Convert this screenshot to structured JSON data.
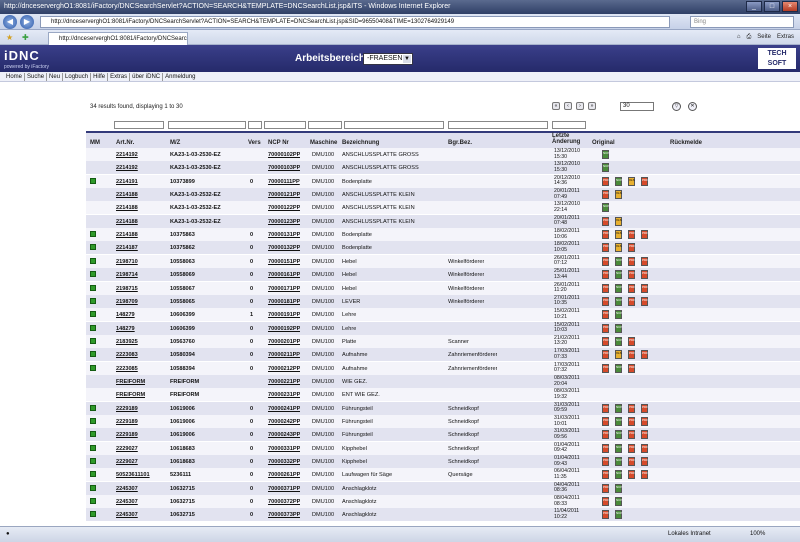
{
  "browser": {
    "title": "http://dnceserverghO1:8081/iFactory/DNCSearchServlet?ACTION=SEARCH&TEMPLATE=DNCSearchList.jsp&ITS - Windows Internet Explorer",
    "address": "http://dnceserverghO1:8081/iFactory/DNCSearchServlet?ACTION=SEARCH&TEMPLATE=DNCSearchList.jsp&SID=96550408&TIME=1302764929149",
    "search_placeholder": "Bing",
    "tab_label": "http://dnceserverghO1:8081/iFactory/DNCSearchServl...",
    "toolbar_safety": "Seite",
    "toolbar_extras": "Extras",
    "status_zone": "Lokales Intranet",
    "zoom": "100%"
  },
  "app": {
    "logo": "iDNC",
    "logo_sub": "powered by iFactory",
    "workarea_label": "Arbeitsbereich:",
    "workarea_value": "-FRAESEN",
    "brand": "TECH SOFT",
    "menu": [
      "Home",
      "Suche",
      "Neu",
      "Logbuch",
      "Hilfe",
      "Extras",
      "über iDNC",
      "Anmeldung"
    ]
  },
  "results": {
    "summary": "34 results found, displaying 1 to 30",
    "per_page": "30"
  },
  "table": {
    "headers": {
      "mm": "MM",
      "art": "Art.Nr.",
      "mz": "M/Z",
      "vers": "Vers",
      "ncp": "NCP Nr",
      "maschine": "Maschine",
      "bezeichnung": "Bezeichnung",
      "bgr": "Bgr.Bez.",
      "letzte1": "Letzte",
      "letzte2": "Änderung",
      "original": "Original",
      "rueck": "Rückmelde"
    },
    "rows": [
      {
        "mm": false,
        "art": "2214192",
        "mz": "KA23-1-03-2530-EZ",
        "vers": "",
        "ncp": "70000102PP",
        "m": "DMU100",
        "bez": "ANSCHLUSSPLATTE GROSS",
        "bgr": "",
        "d": "13/12/2010",
        "t": "15:30",
        "icons": [
          "ncp"
        ]
      },
      {
        "mm": false,
        "art": "2214192",
        "mz": "KA23-1-03-2530-EZ",
        "vers": "",
        "ncp": "70000103PP",
        "m": "DMU100",
        "bez": "ANSCHLUSSPLATTE GROSS",
        "bgr": "",
        "d": "13/12/2010",
        "t": "15:30",
        "icons": [
          "ncp"
        ]
      },
      {
        "mm": true,
        "art": "2214191",
        "mz": "10373899",
        "vers": "0",
        "ncp": "70000111PP",
        "m": "DMU100",
        "bez": "Bodenplatte",
        "bgr": "",
        "d": "20/12/2010",
        "t": "14:36",
        "icons": [
          "pdf",
          "ncp",
          "xls",
          "pdf"
        ]
      },
      {
        "mm": false,
        "art": "2214188",
        "mz": "KA23-1-03-2532-EZ",
        "vers": "",
        "ncp": "70000121PP",
        "m": "DMU100",
        "bez": "ANSCHLUSSPLATTE KLEIN",
        "bgr": "",
        "d": "20/01/2011",
        "t": "07:49",
        "icons": [
          "pdf",
          "xls"
        ]
      },
      {
        "mm": false,
        "art": "2214188",
        "mz": "KA23-1-03-2532-EZ",
        "vers": "",
        "ncp": "70000122PP",
        "m": "DMU100",
        "bez": "ANSCHLUSSPLATTE KLEIN",
        "bgr": "",
        "d": "13/12/2010",
        "t": "22:14",
        "icons": [
          "ncp"
        ]
      },
      {
        "mm": false,
        "art": "2214188",
        "mz": "KA23-1-03-2532-EZ",
        "vers": "",
        "ncp": "70000123PP",
        "m": "DMU100",
        "bez": "ANSCHLUSSPLATTE KLEIN",
        "bgr": "",
        "d": "20/01/2011",
        "t": "07:48",
        "icons": [
          "pdf",
          "xls"
        ]
      },
      {
        "mm": true,
        "art": "2214188",
        "mz": "10375863",
        "vers": "0",
        "ncp": "70000131PP",
        "m": "DMU100",
        "bez": "Bodenplatte",
        "bgr": "",
        "d": "18/02/2011",
        "t": "10:06",
        "icons": [
          "pdf",
          "xls",
          "pdf",
          "pdf"
        ]
      },
      {
        "mm": true,
        "art": "2214187",
        "mz": "10375862",
        "vers": "0",
        "ncp": "70000132PP",
        "m": "DMU100",
        "bez": "Bodenplatte",
        "bgr": "",
        "d": "18/02/2011",
        "t": "10:05",
        "icons": [
          "pdf",
          "xls",
          "pdf"
        ]
      },
      {
        "mm": true,
        "art": "2198710",
        "mz": "10558063",
        "vers": "0",
        "ncp": "70000151PP",
        "m": "DMU100",
        "bez": "Hebel",
        "bgr": "Winkelförderer",
        "d": "26/01/2011",
        "t": "07:12",
        "icons": [
          "pdf",
          "ncp",
          "pdf",
          "pdf"
        ]
      },
      {
        "mm": true,
        "art": "2198714",
        "mz": "10558069",
        "vers": "0",
        "ncp": "70000161PP",
        "m": "DMU100",
        "bez": "Hebel",
        "bgr": "Winkelförderer",
        "d": "25/01/2011",
        "t": "13:44",
        "icons": [
          "pdf",
          "ncp",
          "pdf",
          "pdf"
        ]
      },
      {
        "mm": true,
        "art": "2198715",
        "mz": "10558067",
        "vers": "0",
        "ncp": "70000171PP",
        "m": "DMU100",
        "bez": "Hebel",
        "bgr": "Winkelförderer",
        "d": "26/01/2011",
        "t": "11:20",
        "icons": [
          "pdf",
          "ncp",
          "pdf",
          "pdf"
        ]
      },
      {
        "mm": true,
        "art": "2198709",
        "mz": "10558065",
        "vers": "0",
        "ncp": "70000181PP",
        "m": "DMU100",
        "bez": "LEVER",
        "bgr": "Winkelförderer",
        "d": "27/01/2011",
        "t": "10:35",
        "icons": [
          "pdf",
          "ncp",
          "pdf",
          "pdf"
        ]
      },
      {
        "mm": true,
        "art": "148279",
        "mz": "10606399",
        "vers": "1",
        "ncp": "70000191PP",
        "m": "DMU100",
        "bez": "Lehre",
        "bgr": "",
        "d": "15/02/2011",
        "t": "10:21",
        "icons": [
          "pdf",
          "ncp"
        ]
      },
      {
        "mm": true,
        "art": "148279",
        "mz": "10606399",
        "vers": "0",
        "ncp": "70000192PP",
        "m": "DMU100",
        "bez": "Lehre",
        "bgr": "",
        "d": "15/02/2011",
        "t": "10:03",
        "icons": [
          "pdf",
          "ncp"
        ]
      },
      {
        "mm": true,
        "art": "2183925",
        "mz": "10563760",
        "vers": "0",
        "ncp": "70000201PP",
        "m": "DMU100",
        "bez": "Platte",
        "bgr": "Scanner",
        "d": "21/02/2011",
        "t": "13:20",
        "icons": [
          "pdf",
          "ncp",
          "pdf"
        ]
      },
      {
        "mm": true,
        "art": "2223083",
        "mz": "10580394",
        "vers": "0",
        "ncp": "70000211PP",
        "m": "DMU100",
        "bez": "Aufnahme",
        "bgr": "Zahnriemenförderer",
        "d": "17/03/2011",
        "t": "07:33",
        "icons": [
          "pdf",
          "xls",
          "pdf",
          "pdf"
        ]
      },
      {
        "mm": true,
        "art": "2223085",
        "mz": "10588394",
        "vers": "0",
        "ncp": "70000212PP",
        "m": "DMU100",
        "bez": "Aufnahme",
        "bgr": "Zahnriemenförderer",
        "d": "17/03/2011",
        "t": "07:32",
        "icons": [
          "pdf",
          "ncp",
          "pdf"
        ]
      },
      {
        "mm": false,
        "art": "FREIFORM",
        "mz": "FREIFORM",
        "vers": "",
        "ncp": "70000221PP",
        "m": "DMU100",
        "bez": "WIE GEZ.",
        "bgr": "",
        "d": "08/03/2011",
        "t": "20:04",
        "icons": []
      },
      {
        "mm": false,
        "art": "FREIFORM",
        "mz": "FREIFORM",
        "vers": "",
        "ncp": "70000231PP",
        "m": "DMU100",
        "bez": "ENT WIE GEZ.",
        "bgr": "",
        "d": "08/03/2011",
        "t": "19:32",
        "icons": []
      },
      {
        "mm": true,
        "art": "2229189",
        "mz": "10619006",
        "vers": "0",
        "ncp": "70000241PP",
        "m": "DMU100",
        "bez": "Führungsteil",
        "bgr": "Schneidkopf",
        "d": "31/03/2011",
        "t": "09:59",
        "icons": [
          "pdf",
          "ncp",
          "pdf",
          "pdf"
        ]
      },
      {
        "mm": true,
        "art": "2229189",
        "mz": "10619006",
        "vers": "0",
        "ncp": "70000242PP",
        "m": "DMU100",
        "bez": "Führungsteil",
        "bgr": "Schneidkopf",
        "d": "31/03/2011",
        "t": "10:01",
        "icons": [
          "pdf",
          "ncp",
          "pdf",
          "pdf"
        ]
      },
      {
        "mm": true,
        "art": "2229189",
        "mz": "10619006",
        "vers": "0",
        "ncp": "70000243PP",
        "m": "DMU100",
        "bez": "Führungsteil",
        "bgr": "Schneidkopf",
        "d": "31/03/2011",
        "t": "09:56",
        "icons": [
          "pdf",
          "ncp",
          "pdf",
          "pdf"
        ]
      },
      {
        "mm": true,
        "art": "2229027",
        "mz": "10618683",
        "vers": "0",
        "ncp": "70000331PP",
        "m": "DMU100",
        "bez": "Kipphebel",
        "bgr": "Schneidkopf",
        "d": "01/04/2011",
        "t": "09:42",
        "icons": [
          "pdf",
          "ncp",
          "pdf",
          "pdf"
        ]
      },
      {
        "mm": true,
        "art": "2229027",
        "mz": "10618683",
        "vers": "0",
        "ncp": "70000332PP",
        "m": "DMU100",
        "bez": "Kipphebel",
        "bgr": "Schneidkopf",
        "d": "01/04/2011",
        "t": "09:43",
        "icons": [
          "pdf",
          "ncp",
          "pdf",
          "pdf"
        ]
      },
      {
        "mm": true,
        "art": "50523611101",
        "mz": "5236111",
        "vers": "0",
        "ncp": "70000261PP",
        "m": "DMU100",
        "bez": "Laufwagen für Säge",
        "bgr": "Quersäge",
        "d": "06/04/2011",
        "t": "11:35",
        "icons": [
          "pdf",
          "ncp",
          "pdf",
          "pdf"
        ]
      },
      {
        "mm": true,
        "art": "2245307",
        "mz": "10632715",
        "vers": "0",
        "ncp": "70000371PP",
        "m": "DMU100",
        "bez": "Anschlagklotz",
        "bgr": "",
        "d": "04/04/2011",
        "t": "08:36",
        "icons": [
          "pdf",
          "ncp"
        ]
      },
      {
        "mm": true,
        "art": "2245307",
        "mz": "10632715",
        "vers": "0",
        "ncp": "70000372PP",
        "m": "DMU100",
        "bez": "Anschlagklotz",
        "bgr": "",
        "d": "08/04/2011",
        "t": "08:33",
        "icons": [
          "pdf",
          "ncp"
        ]
      },
      {
        "mm": true,
        "art": "2245307",
        "mz": "10632715",
        "vers": "0",
        "ncp": "70000373PP",
        "m": "DMU100",
        "bez": "Anschlagklotz",
        "bgr": "",
        "d": "11/04/2011",
        "t": "10:22",
        "icons": [
          "pdf",
          "ncp"
        ]
      }
    ]
  }
}
